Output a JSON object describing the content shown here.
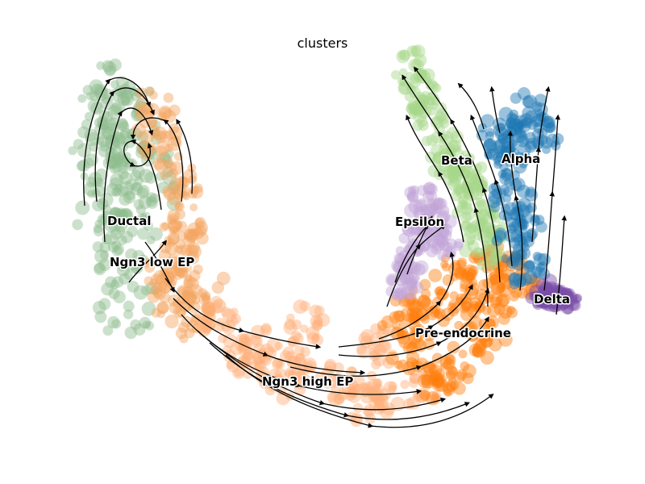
{
  "chart_data": {
    "type": "scatter",
    "title": "clusters",
    "xlabel": "",
    "ylabel": "",
    "axes_visible": false,
    "overlay": "velocity streamlines with arrowheads",
    "legend": "on data",
    "clusters": [
      {
        "name": "Ductal",
        "color": "#8fbc8f"
      },
      {
        "name": "Ngn3 low EP",
        "color": "#f4a460"
      },
      {
        "name": "Ngn3 high EP",
        "color": "#ffb07a"
      },
      {
        "name": "Pre-endocrine",
        "color": "#ff7f0e"
      },
      {
        "name": "Beta",
        "color": "#a6d88a"
      },
      {
        "name": "Alpha",
        "color": "#1f77b4"
      },
      {
        "name": "Delta",
        "color": "#7b4ea8"
      },
      {
        "name": "Epsilon",
        "color": "#c2a5d6"
      }
    ]
  }
}
